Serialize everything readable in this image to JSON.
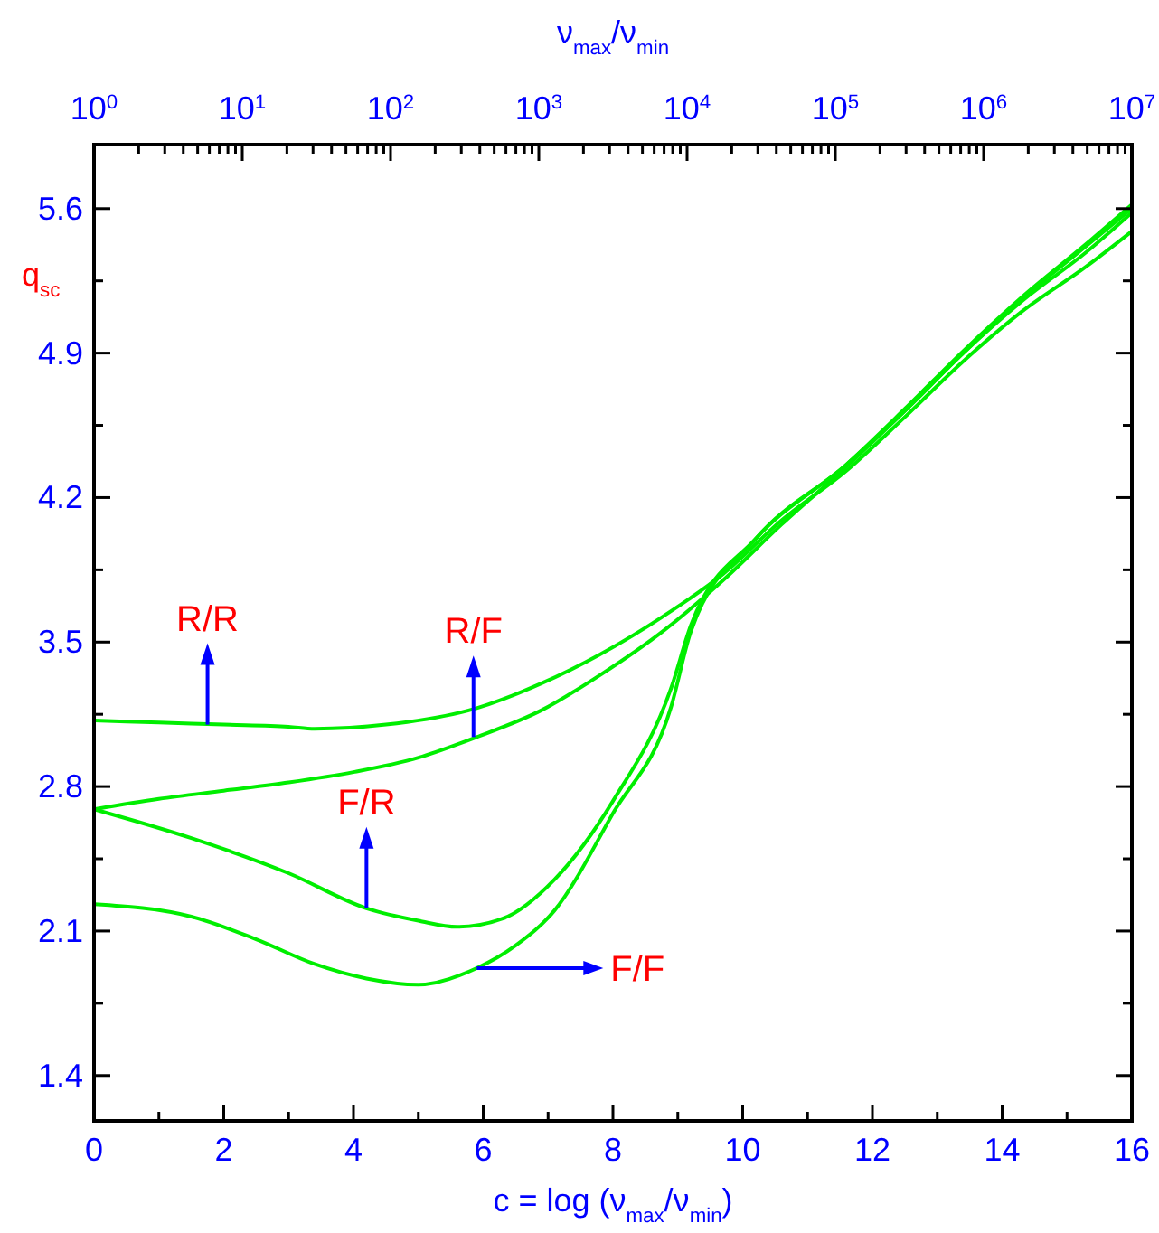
{
  "chart_data": {
    "type": "line",
    "xlabel": "c = log (ν$_{max}$/ν$_{min}$)",
    "ylabel": "q$_{sc}$",
    "x2label": "ν$_{max}$/ν$_{min}$",
    "xlim": [
      0,
      16
    ],
    "ylim": [
      1.18,
      5.91
    ],
    "x2lim": [
      1,
      10000000
    ],
    "log": "x2",
    "grid": false,
    "marker": "none",
    "line_style": "solid",
    "xticks": [
      0,
      {
        "value": 1,
        "label": null
      },
      2,
      {
        "value": 3,
        "label": null
      },
      4,
      {
        "value": 5,
        "label": null
      },
      6,
      {
        "value": 7,
        "label": null
      },
      8,
      {
        "value": 9,
        "label": null
      },
      10,
      {
        "value": 11,
        "label": null
      },
      12,
      {
        "value": 13,
        "label": null
      },
      14,
      {
        "value": 15,
        "label": null
      },
      16
    ],
    "yticks": [
      1.4,
      {
        "value": 1.75,
        "label": null
      },
      2.1,
      {
        "value": 2.45,
        "label": null
      },
      2.8,
      {
        "value": 3.15,
        "label": null
      },
      3.5,
      {
        "value": 3.85,
        "label": null
      },
      4.2,
      {
        "value": 4.55,
        "label": null
      },
      4.9,
      {
        "value": 5.25,
        "label": null
      },
      5.6
    ],
    "x2ticks": [
      {
        "value": 1,
        "label": "10$^{0}$"
      },
      {
        "value": 2,
        "label": null
      },
      {
        "value": 3,
        "label": null
      },
      {
        "value": 4,
        "label": null
      },
      {
        "value": 5,
        "label": null
      },
      {
        "value": 6,
        "label": null
      },
      {
        "value": 7,
        "label": null
      },
      {
        "value": 8,
        "label": null
      },
      {
        "value": 9,
        "label": null
      },
      {
        "value": 10,
        "label": "10$^{1}$"
      },
      {
        "value": 20,
        "label": null
      },
      {
        "value": 30,
        "label": null
      },
      {
        "value": 40,
        "label": null
      },
      {
        "value": 50,
        "label": null
      },
      {
        "value": 60,
        "label": null
      },
      {
        "value": 70,
        "label": null
      },
      {
        "value": 80,
        "label": null
      },
      {
        "value": 90,
        "label": null
      },
      {
        "value": 100,
        "label": "10$^{2}$"
      },
      {
        "value": 200,
        "label": null
      },
      {
        "value": 300,
        "label": null
      },
      {
        "value": 400,
        "label": null
      },
      {
        "value": 500,
        "label": null
      },
      {
        "value": 600,
        "label": null
      },
      {
        "value": 700,
        "label": null
      },
      {
        "value": 800,
        "label": null
      },
      {
        "value": 900,
        "label": null
      },
      {
        "value": 1000,
        "label": "10$^{3}$"
      },
      {
        "value": 2000,
        "label": null
      },
      {
        "value": 3000,
        "label": null
      },
      {
        "value": 4000,
        "label": null
      },
      {
        "value": 5000,
        "label": null
      },
      {
        "value": 6000,
        "label": null
      },
      {
        "value": 7000,
        "label": null
      },
      {
        "value": 8000,
        "label": null
      },
      {
        "value": 9000,
        "label": null
      },
      {
        "value": 10000,
        "label": "10$^{4}$"
      },
      {
        "value": 20000,
        "label": null
      },
      {
        "value": 30000,
        "label": null
      },
      {
        "value": 40000,
        "label": null
      },
      {
        "value": 50000,
        "label": null
      },
      {
        "value": 60000,
        "label": null
      },
      {
        "value": 70000,
        "label": null
      },
      {
        "value": 80000,
        "label": null
      },
      {
        "value": 90000,
        "label": null
      },
      {
        "value": 100000,
        "label": "10$^{5}$"
      },
      {
        "value": 200000,
        "label": null
      },
      {
        "value": 300000,
        "label": null
      },
      {
        "value": 400000,
        "label": null
      },
      {
        "value": 500000,
        "label": null
      },
      {
        "value": 600000,
        "label": null
      },
      {
        "value": 700000,
        "label": null
      },
      {
        "value": 800000,
        "label": null
      },
      {
        "value": 900000,
        "label": null
      },
      {
        "value": 1000000,
        "label": "10$^{6}$"
      },
      {
        "value": 2000000,
        "label": null
      },
      {
        "value": 3000000,
        "label": null
      },
      {
        "value": 4000000,
        "label": null
      },
      {
        "value": 5000000,
        "label": null
      },
      {
        "value": 6000000,
        "label": null
      },
      {
        "value": 7000000,
        "label": null
      },
      {
        "value": 8000000,
        "label": null
      },
      {
        "value": 9000000,
        "label": null
      },
      {
        "value": 10000000,
        "label": "10$^{7}$"
      }
    ],
    "series": [
      {
        "color": "#00ee00",
        "x": [
          0,
          1,
          2,
          3,
          3.4,
          4.5,
          5.9,
          6.9,
          7.8,
          8.8,
          9.7,
          10.6,
          11.6,
          12.5,
          13.4,
          14.3,
          15.3,
          16
        ],
        "values": [
          3.12,
          3.11,
          3.1,
          3.09,
          3.08,
          3.1,
          3.18,
          3.3,
          3.44,
          3.63,
          3.83,
          4.09,
          4.33,
          4.59,
          4.86,
          5.1,
          5.32,
          5.49
        ]
      },
      {
        "color": "#00ee00",
        "x": [
          0,
          1,
          2,
          3,
          4,
          5,
          5.9,
          6.9,
          7.8,
          8.8,
          9.7,
          10.6,
          11.6,
          12.5,
          13.4,
          14.3,
          15.3,
          16
        ],
        "values": [
          2.69,
          2.74,
          2.78,
          2.82,
          2.87,
          2.94,
          3.04,
          3.17,
          3.34,
          3.56,
          3.8,
          4.07,
          4.35,
          4.62,
          4.9,
          5.15,
          5.39,
          5.58
        ]
      },
      {
        "color": "#00ee00",
        "x": [
          0,
          1.5,
          3,
          4.2,
          5,
          5.6,
          6.3,
          7.1,
          8,
          8.9,
          9.2,
          10.2,
          11.6,
          12.5,
          13.4,
          14.3,
          15.3,
          16
        ],
        "values": [
          2.69,
          2.55,
          2.38,
          2.21,
          2.15,
          2.12,
          2.16,
          2.35,
          2.73,
          3.28,
          3.58,
          4.0,
          4.36,
          4.62,
          4.9,
          5.16,
          5.42,
          5.6
        ]
      },
      {
        "color": "#00ee00",
        "x": [
          0,
          1.5,
          2.5,
          3.4,
          4.2,
          5,
          5.9,
          6.5,
          7.1,
          8,
          8.9,
          9.2,
          10.2,
          11.6,
          12.5,
          13.4,
          14.3,
          15.3,
          16
        ],
        "values": [
          2.23,
          2.17,
          2.06,
          1.94,
          1.87,
          1.84,
          1.92,
          2.03,
          2.2,
          2.67,
          3.19,
          3.55,
          4.0,
          4.36,
          4.63,
          4.91,
          5.17,
          5.43,
          5.62
        ]
      }
    ],
    "annotations": [
      {
        "text": "R/R",
        "x": 1.75,
        "y": 3.1
      },
      {
        "text": "R/F",
        "x": 5.85,
        "y": 3.04
      },
      {
        "text": "F/R",
        "x": 4.2,
        "y": 2.21
      },
      {
        "text": "F/F",
        "x": 5.9,
        "y": 1.92
      }
    ]
  }
}
